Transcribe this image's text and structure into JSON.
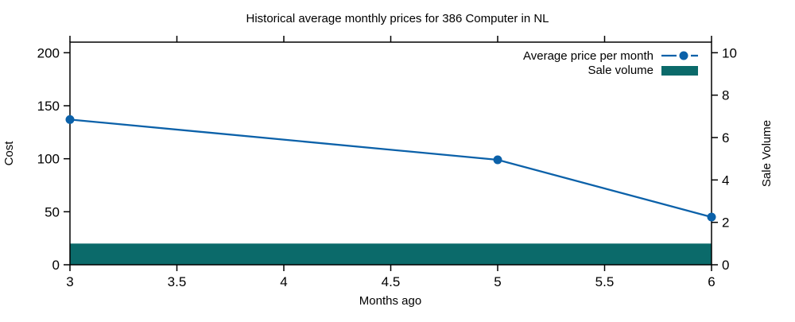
{
  "chart_data": {
    "type": "combo",
    "title": "Historical average monthly prices for 386 Computer in NL",
    "xlabel": "Months ago",
    "ylabel_left": "Cost",
    "ylabel_right": "Sale Volume",
    "xlim": [
      3,
      6
    ],
    "ylim_left": [
      0,
      210
    ],
    "ylim_right": [
      0,
      10.5
    ],
    "x_ticks": [
      3,
      3.5,
      4,
      4.5,
      5,
      5.5,
      6
    ],
    "y_ticks_left": [
      0,
      50,
      100,
      150,
      200
    ],
    "y_ticks_right": [
      0,
      2,
      4,
      6,
      8,
      10
    ],
    "grid": false,
    "legend_position": "top-right-inside",
    "background": "#ffffff",
    "axis_color": "#000000",
    "series": [
      {
        "name": "Average price per month",
        "type": "line",
        "axis": "left",
        "color": "#0b61a9",
        "marker": "filled-circle",
        "x": [
          3,
          5,
          6
        ],
        "y": [
          137,
          99,
          45
        ]
      },
      {
        "name": "Sale volume",
        "type": "bar",
        "axis": "right",
        "color": "#0b6a6a",
        "style": "full-width-band",
        "x": [
          3,
          5,
          6
        ],
        "y": [
          1,
          1,
          1
        ]
      }
    ]
  }
}
